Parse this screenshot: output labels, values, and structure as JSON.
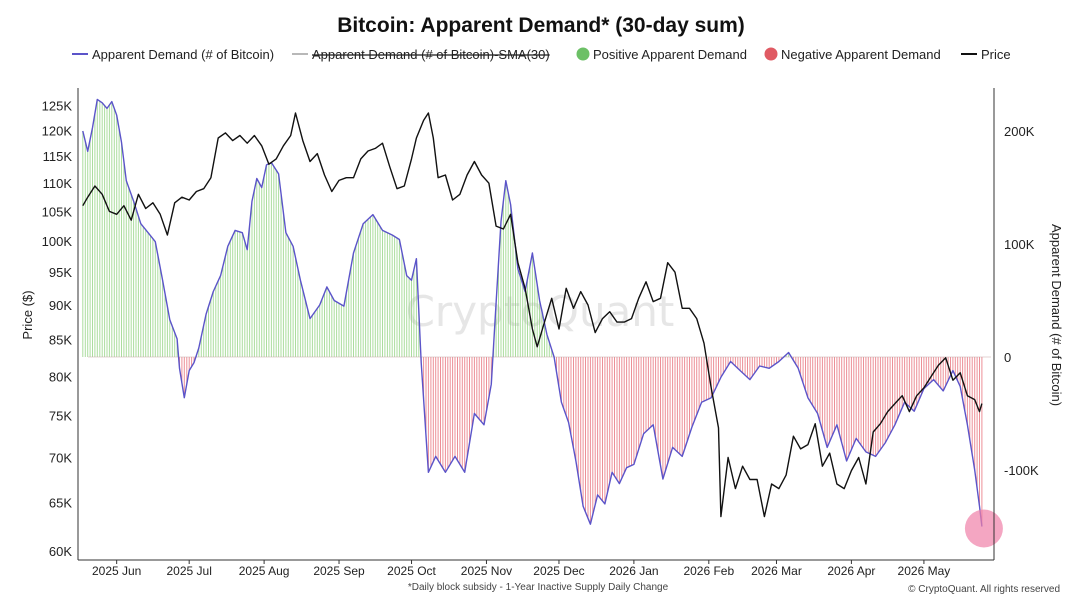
{
  "chart_data": {
    "type": "line",
    "title": "Bitcoin: Apparent Demand* (30-day sum)",
    "legend": [
      {
        "name": "Apparent Demand (# of Bitcoin)",
        "color": "#5b54c9",
        "marker": "line",
        "strike": false
      },
      {
        "name": "Apparent Demand (# of Bitcoin)-SMA(30)",
        "color": "#b8b8b8",
        "marker": "line",
        "strike": true
      },
      {
        "name": "Positive Apparent Demand",
        "color": "#6cc066",
        "marker": "dot",
        "strike": false
      },
      {
        "name": "Negative Apparent Demand",
        "color": "#e05a63",
        "marker": "dot",
        "strike": false
      },
      {
        "name": "Price",
        "color": "#111111",
        "marker": "line",
        "strike": false
      }
    ],
    "legend_position": "top",
    "x_ticks": [
      "2025 Jun",
      "2025 Jul",
      "2025 Aug",
      "2025 Sep",
      "2025 Oct",
      "2025 Nov",
      "2025 Dec",
      "2026 Jan",
      "2026 Feb",
      "2026 Mar",
      "2026 Apr",
      "2026 May"
    ],
    "y_left": {
      "label": "Price ($)",
      "scale": "log",
      "range": [
        60000,
        127000
      ],
      "ticks": [
        60000,
        65000,
        70000,
        75000,
        80000,
        85000,
        90000,
        95000,
        100000,
        105000,
        110000,
        115000,
        120000,
        125000
      ],
      "tick_labels": [
        "60K",
        "65K",
        "70K",
        "75K",
        "80K",
        "85K",
        "90K",
        "95K",
        "100K",
        "105K",
        "110K",
        "115K",
        "120K",
        "125K"
      ]
    },
    "y_right": {
      "label": "Apparent Demand (# of Bitcoin)",
      "range": [
        -170000,
        243000
      ],
      "ticks": [
        200000,
        100000,
        0,
        -100000
      ],
      "tick_labels": [
        "200K",
        "100K",
        "0",
        "-100K"
      ]
    },
    "grid": false,
    "watermark": "CryptoQuant",
    "footnote": "*Daily block subsidy - 1-Year Inactive Supply Daily Change",
    "copyright": "© CryptoQuant. All rights reserved",
    "apparent_demand": {
      "x": [
        "2025-05-18",
        "2025-05-20",
        "2025-05-22",
        "2025-05-24",
        "2025-05-26",
        "2025-05-28",
        "2025-05-30",
        "2025-06-01",
        "2025-06-03",
        "2025-06-05",
        "2025-06-08",
        "2025-06-11",
        "2025-06-14",
        "2025-06-17",
        "2025-06-20",
        "2025-06-23",
        "2025-06-26",
        "2025-06-27",
        "2025-06-29",
        "2025-07-01",
        "2025-07-03",
        "2025-07-05",
        "2025-07-08",
        "2025-07-11",
        "2025-07-14",
        "2025-07-17",
        "2025-07-20",
        "2025-07-23",
        "2025-07-25",
        "2025-07-27",
        "2025-07-29",
        "2025-07-31",
        "2025-08-02",
        "2025-08-04",
        "2025-08-07",
        "2025-08-10",
        "2025-08-13",
        "2025-08-16",
        "2025-08-20",
        "2025-08-24",
        "2025-08-27",
        "2025-08-30",
        "2025-09-03",
        "2025-09-07",
        "2025-09-11",
        "2025-09-15",
        "2025-09-19",
        "2025-09-23",
        "2025-09-26",
        "2025-09-29",
        "2025-10-01",
        "2025-10-03",
        "2025-10-05",
        "2025-10-08",
        "2025-10-11",
        "2025-10-15",
        "2025-10-19",
        "2025-10-23",
        "2025-10-27",
        "2025-10-31",
        "2025-11-03",
        "2025-11-05",
        "2025-11-07",
        "2025-11-09",
        "2025-11-11",
        "2025-11-14",
        "2025-11-17",
        "2025-11-20",
        "2025-11-23",
        "2025-11-26",
        "2025-11-29",
        "2025-12-02",
        "2025-12-05",
        "2025-12-08",
        "2025-12-11",
        "2025-12-14",
        "2025-12-17",
        "2025-12-20",
        "2025-12-23",
        "2025-12-26",
        "2025-12-29",
        "2026-01-01",
        "2026-01-05",
        "2026-01-09",
        "2026-01-13",
        "2026-01-17",
        "2026-01-21",
        "2026-01-25",
        "2026-01-29",
        "2026-02-02",
        "2026-02-06",
        "2026-02-10",
        "2026-02-14",
        "2026-02-18",
        "2026-02-22",
        "2026-02-26",
        "2026-03-02",
        "2026-03-06",
        "2026-03-10",
        "2026-03-14",
        "2026-03-18",
        "2026-03-22",
        "2026-03-26",
        "2026-03-30",
        "2026-04-03",
        "2026-04-07",
        "2026-04-11",
        "2026-04-15",
        "2026-04-19",
        "2026-04-23",
        "2026-04-27",
        "2026-05-01",
        "2026-05-05",
        "2026-05-09",
        "2026-05-13",
        "2026-05-16",
        "2026-05-19",
        "2026-05-22",
        "2026-05-24",
        "2026-05-25"
      ],
      "values": [
        200000,
        182000,
        203000,
        228000,
        225000,
        220000,
        226000,
        214000,
        190000,
        156000,
        138000,
        118000,
        110000,
        102000,
        68000,
        33000,
        16000,
        -10000,
        -36000,
        -12000,
        -5000,
        8000,
        38000,
        58000,
        72000,
        98000,
        112000,
        110000,
        95000,
        138000,
        158000,
        150000,
        170000,
        172000,
        162000,
        110000,
        98000,
        68000,
        34000,
        46000,
        62000,
        50000,
        45000,
        92000,
        118000,
        126000,
        112000,
        108000,
        104000,
        72000,
        68000,
        87000,
        -5000,
        -102000,
        -88000,
        -102000,
        -88000,
        -102000,
        -50000,
        -60000,
        -24000,
        48000,
        120000,
        156000,
        135000,
        78000,
        58000,
        92000,
        50000,
        20000,
        0,
        -40000,
        -58000,
        -92000,
        -132000,
        -148000,
        -122000,
        -130000,
        -102000,
        -112000,
        -98000,
        -95000,
        -68000,
        -60000,
        -108000,
        -80000,
        -88000,
        -62000,
        -40000,
        -36000,
        -18000,
        -4000,
        -12000,
        -20000,
        -8000,
        -10000,
        -4000,
        4000,
        -10000,
        -36000,
        -50000,
        -80000,
        -60000,
        -92000,
        -72000,
        -84000,
        -88000,
        -76000,
        -60000,
        -40000,
        -48000,
        -28000,
        -20000,
        -30000,
        -12000,
        -26000,
        -60000,
        -100000,
        -132000,
        -150000
      ]
    },
    "price": {
      "x": [
        "2025-05-18",
        "2025-05-20",
        "2025-05-23",
        "2025-05-26",
        "2025-05-29",
        "2025-06-01",
        "2025-06-04",
        "2025-06-07",
        "2025-06-10",
        "2025-06-13",
        "2025-06-16",
        "2025-06-19",
        "2025-06-22",
        "2025-06-25",
        "2025-06-28",
        "2025-07-01",
        "2025-07-04",
        "2025-07-07",
        "2025-07-10",
        "2025-07-13",
        "2025-07-16",
        "2025-07-19",
        "2025-07-22",
        "2025-07-25",
        "2025-07-28",
        "2025-07-31",
        "2025-08-03",
        "2025-08-06",
        "2025-08-09",
        "2025-08-12",
        "2025-08-14",
        "2025-08-17",
        "2025-08-20",
        "2025-08-23",
        "2025-08-26",
        "2025-08-29",
        "2025-09-01",
        "2025-09-04",
        "2025-09-07",
        "2025-09-10",
        "2025-09-13",
        "2025-09-16",
        "2025-09-19",
        "2025-09-22",
        "2025-09-25",
        "2025-09-28",
        "2025-10-01",
        "2025-10-03",
        "2025-10-06",
        "2025-10-08",
        "2025-10-10",
        "2025-10-12",
        "2025-10-15",
        "2025-10-18",
        "2025-10-21",
        "2025-10-24",
        "2025-10-27",
        "2025-10-30",
        "2025-11-02",
        "2025-11-05",
        "2025-11-08",
        "2025-11-11",
        "2025-11-14",
        "2025-11-17",
        "2025-11-20",
        "2025-11-22",
        "2025-11-25",
        "2025-11-28",
        "2025-12-01",
        "2025-12-04",
        "2025-12-07",
        "2025-12-10",
        "2025-12-13",
        "2025-12-16",
        "2025-12-19",
        "2025-12-22",
        "2025-12-25",
        "2025-12-28",
        "2025-12-31",
        "2026-01-03",
        "2026-01-06",
        "2026-01-09",
        "2026-01-12",
        "2026-01-15",
        "2026-01-18",
        "2026-01-21",
        "2026-01-24",
        "2026-01-27",
        "2026-01-30",
        "2026-02-02",
        "2026-02-05",
        "2026-02-06",
        "2026-02-09",
        "2026-02-12",
        "2026-02-15",
        "2026-02-18",
        "2026-02-21",
        "2026-02-24",
        "2026-02-27",
        "2026-03-02",
        "2026-03-05",
        "2026-03-08",
        "2026-03-11",
        "2026-03-14",
        "2026-03-17",
        "2026-03-20",
        "2026-03-23",
        "2026-03-26",
        "2026-03-29",
        "2026-04-01",
        "2026-04-04",
        "2026-04-07",
        "2026-04-10",
        "2026-04-13",
        "2026-04-16",
        "2026-04-19",
        "2026-04-22",
        "2026-04-25",
        "2026-04-28",
        "2026-05-01",
        "2026-05-04",
        "2026-05-07",
        "2026-05-10",
        "2026-05-13",
        "2026-05-16",
        "2026-05-19",
        "2026-05-22",
        "2026-05-24",
        "2026-05-25"
      ],
      "values": [
        106000,
        107500,
        109500,
        108000,
        105000,
        104500,
        106000,
        103500,
        108000,
        105500,
        106500,
        104500,
        101000,
        106500,
        107500,
        107000,
        108500,
        109000,
        111000,
        118500,
        119500,
        118000,
        119000,
        117500,
        119000,
        117000,
        113500,
        114500,
        117000,
        119000,
        123500,
        118000,
        114000,
        115500,
        111500,
        108500,
        110500,
        111000,
        111000,
        114500,
        116000,
        116500,
        117500,
        113000,
        109000,
        109500,
        114500,
        118500,
        122000,
        123500,
        118500,
        111000,
        111500,
        107000,
        108000,
        111500,
        114000,
        111500,
        110000,
        102500,
        102000,
        104500,
        96500,
        92500,
        86500,
        84000,
        87500,
        91000,
        86500,
        92500,
        89500,
        92000,
        90000,
        86000,
        88000,
        89000,
        87500,
        87500,
        88000,
        91000,
        93500,
        90500,
        91000,
        96500,
        95000,
        89500,
        89500,
        88000,
        84500,
        78500,
        73500,
        63500,
        70000,
        66500,
        69000,
        67500,
        67500,
        63500,
        67000,
        66500,
        68000,
        72500,
        71000,
        71500,
        74000,
        69000,
        70500,
        67000,
        66500,
        68500,
        70000,
        67000,
        73000,
        74000,
        75500,
        76500,
        77500,
        75500,
        77500,
        78500,
        80000,
        81500,
        82500,
        79500,
        80500,
        77500,
        77000,
        75500,
        76500
      ]
    },
    "highlight": {
      "date": "2026-05-25",
      "value": -150000,
      "color": "#f080a8"
    }
  }
}
